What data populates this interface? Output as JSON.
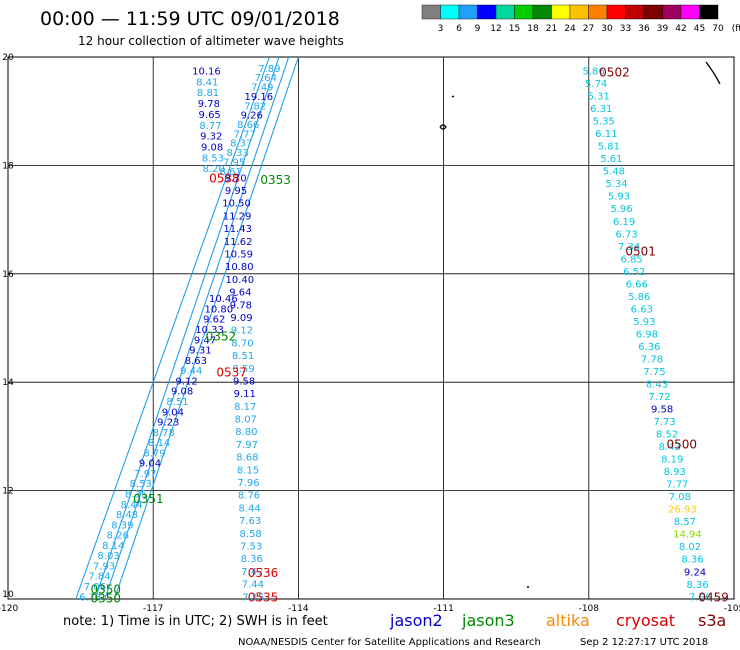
{
  "header": {
    "title": "00:00 — 11:59 UTC 09/01/2018",
    "subtitle": "12 hour collection of altimeter wave heights"
  },
  "colorbar": {
    "colors": [
      "#808080",
      "#00ffff",
      "#1ea0ff",
      "#0000ff",
      "#00d8a0",
      "#00cc00",
      "#008800",
      "#ffff00",
      "#ffc000",
      "#ff8000",
      "#ff0000",
      "#c00000",
      "#800000",
      "#a00060",
      "#ff00ff",
      "#000000"
    ],
    "labels": [
      "3",
      "6",
      "9",
      "12",
      "15",
      "18",
      "21",
      "24",
      "27",
      "30",
      "33",
      "36",
      "39",
      "42",
      "45",
      "70",
      "(ft)"
    ]
  },
  "footer": {
    "note": "note: 1) Time is in UTC; 2) SWH is in feet",
    "legend": [
      {
        "label": "jason2",
        "color": "#0000d0"
      },
      {
        "label": "jason3",
        "color": "#008800"
      },
      {
        "label": "altika",
        "color": "#ff8800"
      },
      {
        "label": "cryosat",
        "color": "#dd0000"
      },
      {
        "label": "s3a",
        "color": "#800000"
      }
    ],
    "credit": "NOAA/NESDIS Center for Satellite Applications and Research",
    "timestamp": "Sep  2 12:27:17 UTC 2018"
  },
  "chart_data": {
    "type": "scatter",
    "xlim": [
      -120,
      -105
    ],
    "ylim": [
      10,
      20
    ],
    "x_ticks": [
      -120,
      -117,
      -114,
      -111,
      -108,
      -105
    ],
    "x_tick_labels": [
      "-120",
      "-117",
      "-114",
      "-111",
      "-108",
      "-105"
    ],
    "y_ticks": [
      10,
      12,
      14,
      16,
      18,
      20
    ],
    "y_tick_labels": [
      "10",
      "12",
      "14",
      "16",
      "18",
      "20"
    ],
    "grid": true,
    "time_labels": [
      {
        "text": "0502",
        "x": -107.47,
        "y": 19.73,
        "color": "#800000"
      },
      {
        "text": "0501",
        "x": -106.93,
        "y": 16.43,
        "color": "#800000"
      },
      {
        "text": "0500",
        "x": -106.08,
        "y": 12.87,
        "color": "#800000"
      },
      {
        "text": "0459",
        "x": -105.42,
        "y": 10.05,
        "color": "#800000"
      },
      {
        "text": "0538",
        "x": -115.53,
        "y": 17.78,
        "color": "#dd0000"
      },
      {
        "text": "0537",
        "x": -115.38,
        "y": 14.2,
        "color": "#dd0000"
      },
      {
        "text": "0536",
        "x": -114.73,
        "y": 10.5,
        "color": "#dd0000"
      },
      {
        "text": "0535",
        "x": -114.73,
        "y": 10.05,
        "color": "#dd0000"
      },
      {
        "text": "0353",
        "x": -114.47,
        "y": 17.75,
        "color": "#008800"
      },
      {
        "text": "0352",
        "x": -115.6,
        "y": 14.86,
        "color": "#008800"
      },
      {
        "text": "0351",
        "x": -117.1,
        "y": 11.86,
        "color": "#008800"
      },
      {
        "text": "0350",
        "x": -117.98,
        "y": 10.19,
        "color": "#008800"
      },
      {
        "text": "0350",
        "x": -117.98,
        "y": 10.03,
        "color": "#008800"
      }
    ],
    "point_groups": [
      {
        "name": "s3a",
        "color": "#00c8e0",
        "x_top": -107.9,
        "y_top": 19.75,
        "x_bottom": -105.7,
        "y_bottom": 10.05,
        "values": [
          "5.86",
          "5.74",
          "5.31",
          "6.31",
          "5.35",
          "6.11",
          "5.81",
          "5.61",
          "5.48",
          "5.34",
          "5.93",
          "5.96",
          "6.19",
          "6.73",
          "7.34",
          "6.85",
          "6.52",
          "6.66",
          "5.86",
          "6.63",
          "5.93",
          "6.98",
          "6.36",
          "7.78",
          "7.75",
          "8.43",
          "7.72",
          "9.58",
          "7.73",
          "8.52",
          "8.43",
          "8.19",
          "8.93",
          "7.77",
          "7.08",
          "26.93",
          "8.57",
          "14.94",
          "8.02",
          "8.36",
          "9.24",
          "8.36",
          "7.66"
        ],
        "overrides": {
          "27": "#0000cc",
          "35": "#ffcc00",
          "37": "#88dd00",
          "40": "#0000cc"
        }
      },
      {
        "name": "cryosat",
        "color": "#20a8f0",
        "x_top": -115.3,
        "y_top": 17.78,
        "x_bottom": -114.93,
        "y_bottom": 10.05,
        "values": [
          "9.70",
          "9.95",
          "10.50",
          "11.29",
          "11.43",
          "11.62",
          "10.59",
          "10.80",
          "10.40",
          "9.64",
          "9.78",
          "9.09",
          "9.12",
          "8.70",
          "8.51",
          "8.59",
          "9.58",
          "9.11",
          "8.17",
          "8.07",
          "8.80",
          "7.97",
          "8.68",
          "8.15",
          "7.96",
          "8.76",
          "8.44",
          "7.63",
          "8.58",
          "7.53",
          "8.36",
          "7.47",
          "7.44",
          "7.15"
        ],
        "overrides": {
          "0": "#0000cc",
          "1": "#0000cc",
          "2": "#0000cc",
          "3": "#0000cc",
          "4": "#0000cc",
          "5": "#0000cc",
          "6": "#0000cc",
          "7": "#0000cc",
          "8": "#0000cc",
          "9": "#0000cc",
          "10": "#0000cc",
          "11": "#0000cc",
          "16": "#0000cc",
          "17": "#0000cc"
        }
      },
      {
        "name": "jason2",
        "color": "#20a8f0",
        "x_top": -115.9,
        "y_top": 19.75,
        "x_bottom": -115.75,
        "y_bottom": 17.95,
        "values": [
          "10.16",
          "8.41",
          "8.81",
          "9.78",
          "9.65",
          "8.77",
          "9.32",
          "9.08",
          "8.53",
          "8.20"
        ],
        "overrides": {
          "0": "#0000cc",
          "3": "#0000cc",
          "4": "#0000cc",
          "6": "#0000cc",
          "7": "#0000cc"
        }
      },
      {
        "name": "jason2-lower",
        "color": "#20a8f0",
        "x_top": -115.55,
        "y_top": 15.55,
        "x_bottom": -118.3,
        "y_bottom": 10.05,
        "values": [
          "10.46",
          "10.80",
          "9.62",
          "10.33",
          "9.47",
          "9.31",
          "8.63",
          "9.44",
          "9.12",
          "9.08",
          "8.51",
          "9.04",
          "9.23",
          "8.78",
          "8.14",
          "8.79",
          "9.04",
          "7.97",
          "8.53",
          "8.35",
          "8.44",
          "8.48",
          "8.39",
          "8.26",
          "8.14",
          "8.03",
          "7.93",
          "7.84",
          "7.06",
          "6.73"
        ],
        "overrides": {
          "0": "#0000cc",
          "1": "#0000cc",
          "2": "#0000cc",
          "3": "#0000cc",
          "4": "#0000cc",
          "5": "#0000cc",
          "6": "#0000cc",
          "8": "#0000cc",
          "9": "#0000cc",
          "11": "#0000cc",
          "12": "#0000cc",
          "16": "#0000cc"
        }
      },
      {
        "name": "jason3",
        "color": "#20a8f0",
        "x_top": -114.6,
        "y_top": 19.8,
        "x_bottom": -115.4,
        "y_bottom": 17.9,
        "values": [
          "7.89",
          "7.64",
          "7.49",
          "19.16",
          "7.82",
          "9.26",
          "8.66",
          "7.77",
          "8.37",
          "8.33",
          "7.95",
          "8.61"
        ],
        "overrides": {
          "3": "#0000cc",
          "5": "#0000cc"
        }
      }
    ],
    "jason_bands": [
      {
        "x1": -114.0,
        "y1": 20.0,
        "x2": -117.8,
        "y2": 10.0
      },
      {
        "x1": -114.2,
        "y1": 20.0,
        "x2": -118.0,
        "y2": 10.0
      },
      {
        "x1": -114.4,
        "y1": 20.0,
        "x2": -118.2,
        "y2": 10.0
      },
      {
        "x1": -114.6,
        "y1": 20.0,
        "x2": -118.6,
        "y2": 10.0
      }
    ]
  }
}
